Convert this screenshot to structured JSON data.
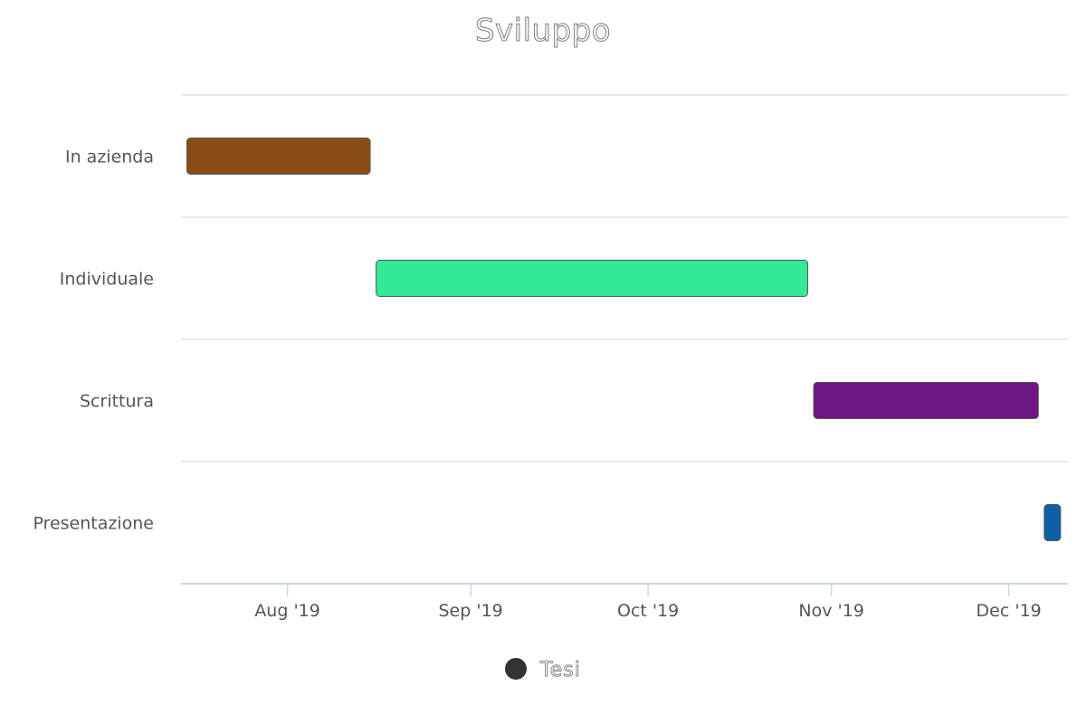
{
  "chart_data": {
    "type": "gantt",
    "title": "Sviluppo",
    "categories": [
      "In azienda",
      "Individuale",
      "Scrittura",
      "Presentazione"
    ],
    "series": [
      {
        "name": "Tesi",
        "tasks": [
          {
            "name": "In azienda",
            "start": "2019-07-15",
            "end": "2019-08-15",
            "color": "#8a4c16"
          },
          {
            "name": "Individuale",
            "start": "2019-08-16",
            "end": "2019-10-28",
            "color": "#33e897"
          },
          {
            "name": "Scrittura",
            "start": "2019-10-29",
            "end": "2019-12-06",
            "color": "#6e1582"
          },
          {
            "name": "Presentazione",
            "start": "2019-12-07",
            "end": "2019-12-09",
            "color": "#0f5fa8"
          }
        ]
      }
    ],
    "x_axis": {
      "ticks": [
        {
          "date": "2019-08-01",
          "label": "Aug '19"
        },
        {
          "date": "2019-09-01",
          "label": "Sep '19"
        },
        {
          "date": "2019-10-01",
          "label": "Oct '19"
        },
        {
          "date": "2019-11-01",
          "label": "Nov '19"
        },
        {
          "date": "2019-12-01",
          "label": "Dec '19"
        }
      ],
      "min": "2019-07-14",
      "max": "2019-12-11"
    },
    "legend": {
      "position": "bottom",
      "marker_color": "#333333"
    },
    "grid": true
  }
}
